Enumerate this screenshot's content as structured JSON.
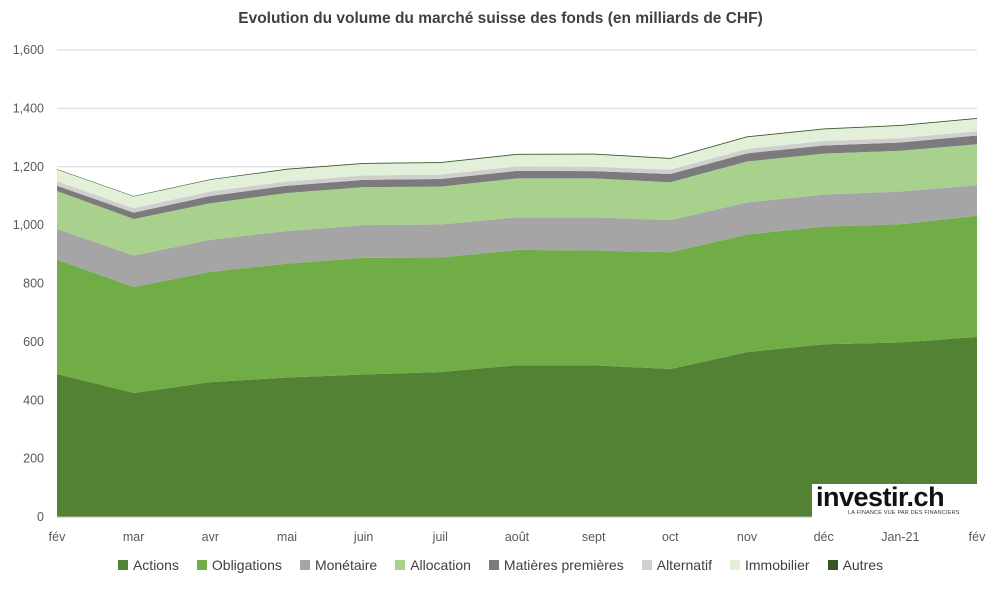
{
  "chart_data": {
    "type": "area",
    "stacked": true,
    "title": "Evolution du volume du marché suisse des fonds (en milliards de CHF)",
    "categories": [
      "fév",
      "mar",
      "avr",
      "mai",
      "juin",
      "juil",
      "août",
      "sept",
      "oct",
      "nov",
      "déc",
      "Jan-21",
      "fév"
    ],
    "ylim": [
      0,
      1600
    ],
    "yticks": [
      "0",
      "200",
      "400",
      "600",
      "800",
      "1,000",
      "1,200",
      "1,400",
      "1,600"
    ],
    "ytick_values": [
      0,
      200,
      400,
      600,
      800,
      1000,
      1200,
      1400,
      1600
    ],
    "grid": true,
    "legend_position": "bottom",
    "series": [
      {
        "name": "Actions",
        "color": "#548235",
        "values": [
          490,
          425,
          462,
          478,
          488,
          497,
          520,
          520,
          507,
          565,
          592,
          598,
          617
        ]
      },
      {
        "name": "Obligations",
        "color": "#70AD47",
        "values": [
          392,
          363,
          378,
          390,
          400,
          392,
          395,
          393,
          400,
          403,
          403,
          405,
          415
        ]
      },
      {
        "name": "Monétaire",
        "color": "#A5A5A5",
        "values": [
          105,
          108,
          110,
          112,
          112,
          113,
          112,
          114,
          110,
          110,
          110,
          112,
          105
        ]
      },
      {
        "name": "Allocation",
        "color": "#A9D18E",
        "values": [
          130,
          125,
          125,
          130,
          130,
          130,
          133,
          133,
          130,
          140,
          140,
          140,
          140
        ]
      },
      {
        "name": "Matières premières",
        "color": "#7B7B7B",
        "values": [
          18,
          22,
          25,
          25,
          25,
          26,
          26,
          25,
          28,
          28,
          28,
          28,
          30
        ]
      },
      {
        "name": "Alternatif",
        "color": "#D0CECE",
        "values": [
          15,
          15,
          15,
          15,
          15,
          15,
          15,
          15,
          15,
          15,
          15,
          15,
          15
        ]
      },
      {
        "name": "Immobilier",
        "color": "#E2F0D9",
        "values": [
          40,
          40,
          40,
          40,
          40,
          40,
          40,
          42,
          37,
          40,
          40,
          42,
          42
        ]
      },
      {
        "name": "Autres",
        "color": "#375623",
        "values": [
          2,
          2,
          2,
          3,
          3,
          3,
          3,
          3,
          3,
          3,
          3,
          3,
          3
        ]
      }
    ]
  },
  "logo": {
    "word": "investir.ch",
    "tagline": "LA FINANCE VUE PAR DES FINANCIERS"
  }
}
